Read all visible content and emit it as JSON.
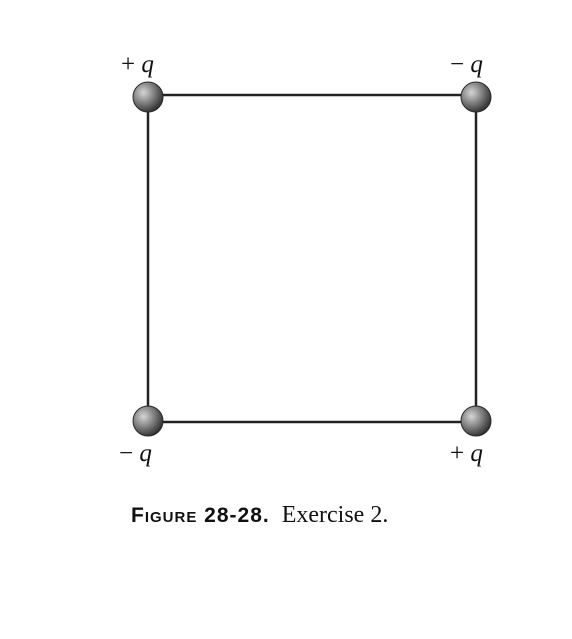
{
  "charges": [
    {
      "id": "top-left",
      "sign": "+",
      "symbol": "q"
    },
    {
      "id": "top-right",
      "sign": "−",
      "symbol": "q"
    },
    {
      "id": "bottom-left",
      "sign": "−",
      "symbol": "q"
    },
    {
      "id": "bottom-right",
      "sign": "+",
      "symbol": "q"
    }
  ],
  "caption": {
    "label": "Figure 28-28.",
    "text": "Exercise 2."
  },
  "colors": {
    "line": "#222222",
    "sphere_light": "#bdbdbd",
    "sphere_dark": "#3a3a3a",
    "text": "#111111"
  }
}
